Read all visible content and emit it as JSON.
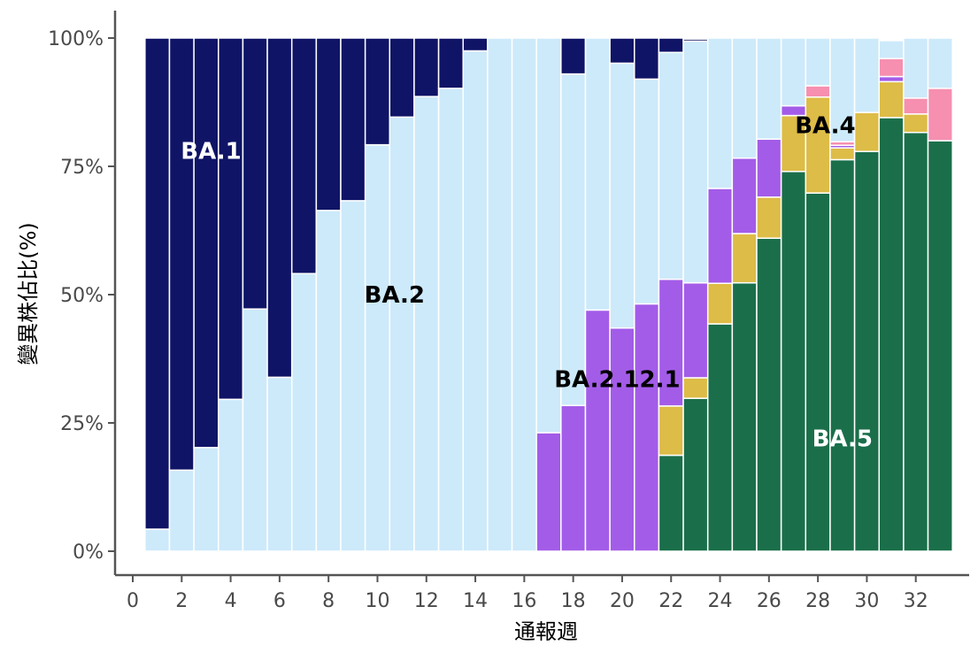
{
  "chart_data": {
    "type": "bar",
    "stacked": true,
    "title": "",
    "xlabel": "通報週",
    "ylabel": "變異株佔比(%)",
    "ylim": [
      0,
      100
    ],
    "xlim": [
      0,
      34
    ],
    "x_ticks": [
      0,
      2,
      4,
      6,
      8,
      10,
      12,
      14,
      16,
      18,
      20,
      22,
      24,
      26,
      28,
      30,
      32
    ],
    "y_ticks": [
      {
        "value": 0,
        "label": "0%"
      },
      {
        "value": 25,
        "label": "25%"
      },
      {
        "value": 50,
        "label": "50%"
      },
      {
        "value": 75,
        "label": "75%"
      },
      {
        "value": 100,
        "label": "100%"
      }
    ],
    "grid": false,
    "legend": "none",
    "weeks": [
      1,
      2,
      3,
      4,
      5,
      6,
      7,
      8,
      9,
      10,
      11,
      12,
      13,
      14,
      15,
      16,
      17,
      18,
      19,
      20,
      21,
      22,
      23,
      24,
      25,
      26,
      27,
      28,
      29,
      30,
      31,
      32,
      33
    ],
    "series": [
      {
        "key": "ba5",
        "color": "#1a6f4a",
        "values": [
          0,
          0,
          0,
          0,
          0,
          0,
          0,
          0,
          0,
          0,
          0,
          0,
          0,
          0,
          0,
          0,
          0,
          0,
          0,
          0,
          0,
          18.7,
          29.8,
          44.3,
          52.3,
          61.0,
          74.0,
          69.8,
          76.3,
          77.9,
          84.5,
          81.6,
          80.0
        ]
      },
      {
        "key": "ba4",
        "color": "#ddbc47",
        "values": [
          0,
          0,
          0,
          0,
          0,
          0,
          0,
          0,
          0,
          0,
          0,
          0,
          0,
          0,
          0,
          0,
          0,
          0,
          0,
          0,
          0,
          9.6,
          4.0,
          7.9,
          9.6,
          8.0,
          10.9,
          18.7,
          2.3,
          7.6,
          7.0,
          3.6,
          0
        ]
      },
      {
        "key": "ba2121",
        "color": "#a35ce8",
        "values": [
          0,
          0,
          0,
          0,
          0,
          0,
          0,
          0,
          0,
          0,
          0,
          0,
          0,
          0,
          0,
          0,
          23.1,
          28.4,
          47.0,
          43.5,
          48.2,
          24.7,
          18.5,
          18.5,
          14.7,
          11.3,
          1.9,
          0,
          0.5,
          0,
          1.0,
          0,
          0
        ]
      },
      {
        "key": "other",
        "color": "#f68fb0",
        "values": [
          0,
          0,
          0,
          0,
          0,
          0,
          0,
          0,
          0,
          0,
          0,
          0,
          0,
          0,
          0,
          0,
          0,
          0,
          0,
          0,
          0,
          0,
          0,
          0,
          0,
          0,
          0,
          2.2,
          0.7,
          0,
          3.5,
          3.1,
          10.2
        ]
      },
      {
        "key": "ba2",
        "color": "#cdeafa",
        "values": [
          4.3,
          15.8,
          20.2,
          29.6,
          47.2,
          33.9,
          54.1,
          66.4,
          68.3,
          79.2,
          84.6,
          88.6,
          90.2,
          97.5,
          100,
          100,
          76.9,
          64.6,
          53.0,
          51.6,
          43.8,
          44.2,
          47.1,
          29.3,
          23.4,
          19.7,
          13.2,
          9.3,
          20.2,
          14.5,
          3.5,
          11.7,
          9.8
        ]
      },
      {
        "key": "ba1",
        "color": "#0f1466",
        "values": [
          95.7,
          84.2,
          79.8,
          70.4,
          52.8,
          66.1,
          45.9,
          33.6,
          31.7,
          20.8,
          15.4,
          11.4,
          9.8,
          2.5,
          0,
          0,
          0,
          7.0,
          0,
          4.9,
          8.0,
          2.8,
          0.4,
          0,
          0,
          0,
          0,
          0,
          0,
          0,
          0,
          0,
          0
        ]
      },
      {
        "key": "top",
        "color": "#f08a3c",
        "values": [
          0,
          0,
          0,
          0,
          0,
          0,
          0,
          0,
          0,
          0,
          0,
          0,
          0,
          0,
          0,
          0,
          0,
          0,
          0,
          0,
          0,
          0,
          0,
          0,
          0,
          0.5,
          0,
          0,
          0,
          0,
          0,
          0,
          0
        ]
      }
    ],
    "annotations": [
      {
        "text": "BA.1",
        "x": 3.2,
        "y": 78,
        "color": "#ffffff"
      },
      {
        "text": "BA.2",
        "x": 10.7,
        "y": 50,
        "color": "#000000"
      },
      {
        "text": "BA.2.12.1",
        "x": 19.8,
        "y": 33.5,
        "color": "#000000"
      },
      {
        "text": "BA.4",
        "x": 28.3,
        "y": 83,
        "color": "#000000"
      },
      {
        "text": "BA.5",
        "x": 29.0,
        "y": 22,
        "color": "#ffffff"
      }
    ]
  }
}
